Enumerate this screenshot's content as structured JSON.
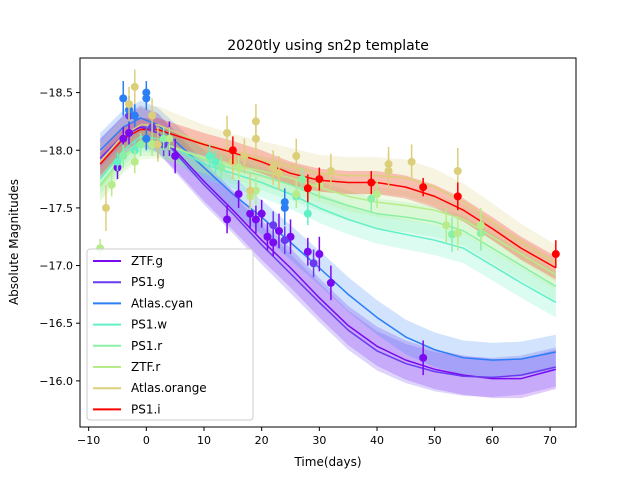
{
  "chart_data": {
    "type": "line",
    "title": "2020tly using sn2p template",
    "xlabel": "Time(days)",
    "ylabel": "Absolute Magnitudes",
    "xlim": [
      -11.5,
      74.5
    ],
    "ylim": [
      -18.8,
      -15.6
    ],
    "y_inverted": true,
    "grid": false,
    "legend_position": "lower-left",
    "xticks": [
      -10,
      0,
      10,
      20,
      30,
      40,
      50,
      60,
      70
    ],
    "xtick_labels": [
      "−10",
      "0",
      "10",
      "20",
      "30",
      "40",
      "50",
      "60",
      "70"
    ],
    "yticks": [
      -18.5,
      -18.0,
      -17.5,
      -17.0,
      -16.5,
      -16.0
    ],
    "ytick_labels": [
      "−18.5",
      "−18.0",
      "−17.5",
      "−17.0",
      "−16.5",
      "−16.0"
    ],
    "series": [
      {
        "name": "ZTF.g",
        "color": "#7a0af0",
        "band": 0.17,
        "curve": [
          [
            -8,
            -17.93
          ],
          [
            -4,
            -18.13
          ],
          [
            -1,
            -18.2
          ],
          [
            2,
            -18.15
          ],
          [
            5,
            -18.0
          ],
          [
            10,
            -17.73
          ],
          [
            15,
            -17.48
          ],
          [
            20,
            -17.22
          ],
          [
            25,
            -16.98
          ],
          [
            30,
            -16.72
          ],
          [
            35,
            -16.48
          ],
          [
            40,
            -16.3
          ],
          [
            45,
            -16.18
          ],
          [
            50,
            -16.1
          ],
          [
            55,
            -16.05
          ],
          [
            60,
            -16.02
          ],
          [
            65,
            -16.02
          ],
          [
            71,
            -16.1
          ]
        ],
        "points": [
          [
            -5,
            -17.85,
            0.1
          ],
          [
            -4,
            -18.1,
            0.1
          ],
          [
            -3,
            -18.15,
            0.1
          ],
          [
            2,
            -18.05,
            0.12
          ],
          [
            4,
            -18.1,
            0.15
          ],
          [
            5,
            -17.95,
            0.15
          ],
          [
            14,
            -17.4,
            0.12
          ],
          [
            16,
            -17.62,
            0.12
          ],
          [
            18,
            -17.45,
            0.12
          ],
          [
            19,
            -17.4,
            0.12
          ],
          [
            20,
            -17.45,
            0.12
          ],
          [
            21,
            -17.25,
            0.12
          ],
          [
            22,
            -17.2,
            0.12
          ],
          [
            23,
            -17.3,
            0.15
          ],
          [
            25,
            -17.25,
            0.15
          ],
          [
            28,
            -17.12,
            0.12
          ],
          [
            30,
            -17.1,
            0.15
          ],
          [
            32,
            -16.85,
            0.15
          ],
          [
            48,
            -16.2,
            0.15
          ]
        ]
      },
      {
        "name": "PS1.g",
        "color": "#6a3af0",
        "band": 0.17,
        "curve": [
          [
            -8,
            -17.93
          ],
          [
            -4,
            -18.13
          ],
          [
            -1,
            -18.22
          ],
          [
            2,
            -18.15
          ],
          [
            5,
            -17.98
          ],
          [
            10,
            -17.7
          ],
          [
            15,
            -17.45
          ],
          [
            20,
            -17.18
          ],
          [
            25,
            -16.93
          ],
          [
            30,
            -16.68
          ],
          [
            35,
            -16.44
          ],
          [
            40,
            -16.26
          ],
          [
            45,
            -16.15
          ],
          [
            50,
            -16.08
          ],
          [
            55,
            -16.04
          ],
          [
            60,
            -16.03
          ],
          [
            65,
            -16.05
          ],
          [
            71,
            -16.12
          ]
        ],
        "points": [
          [
            -3,
            -18.3,
            0.08
          ],
          [
            -2,
            -18.3,
            0.08
          ],
          [
            1,
            -18.2,
            0.1
          ],
          [
            3,
            -18.05,
            0.1
          ],
          [
            22,
            -17.35,
            0.12
          ],
          [
            24,
            -17.22,
            0.12
          ],
          [
            29,
            -17.02,
            0.12
          ]
        ]
      },
      {
        "name": "Atlas.cyan",
        "color": "#2c7ef5",
        "band": 0.15,
        "curve": [
          [
            -8,
            -18.0
          ],
          [
            -4,
            -18.2
          ],
          [
            -1,
            -18.28
          ],
          [
            2,
            -18.22
          ],
          [
            5,
            -18.08
          ],
          [
            10,
            -17.85
          ],
          [
            15,
            -17.62
          ],
          [
            20,
            -17.42
          ],
          [
            25,
            -17.2
          ],
          [
            30,
            -16.98
          ],
          [
            35,
            -16.75
          ],
          [
            40,
            -16.55
          ],
          [
            45,
            -16.38
          ],
          [
            50,
            -16.27
          ],
          [
            55,
            -16.2
          ],
          [
            60,
            -16.18
          ],
          [
            65,
            -16.19
          ],
          [
            71,
            -16.25
          ]
        ],
        "points": [
          [
            -4,
            -18.45,
            0.15
          ],
          [
            -3,
            -18.35,
            0.12
          ],
          [
            -2,
            -18.3,
            0.1
          ],
          [
            0,
            -18.5,
            0.1
          ],
          [
            0,
            -18.45,
            0.1
          ],
          [
            0,
            -18.1,
            0.1
          ],
          [
            24,
            -17.5,
            0.15
          ],
          [
            24,
            -17.55,
            0.12
          ]
        ]
      },
      {
        "name": "PS1.w",
        "color": "#60f0c6",
        "band": 0.13,
        "curve": [
          [
            -8,
            -17.75
          ],
          [
            -4,
            -18.0
          ],
          [
            -1,
            -18.12
          ],
          [
            2,
            -18.1
          ],
          [
            5,
            -18.02
          ],
          [
            10,
            -17.88
          ],
          [
            15,
            -17.8
          ],
          [
            20,
            -17.72
          ],
          [
            25,
            -17.62
          ],
          [
            30,
            -17.5
          ],
          [
            35,
            -17.4
          ],
          [
            40,
            -17.32
          ],
          [
            45,
            -17.27
          ],
          [
            50,
            -17.22
          ],
          [
            55,
            -17.15
          ],
          [
            60,
            -17.0
          ],
          [
            65,
            -16.85
          ],
          [
            71,
            -16.68
          ]
        ],
        "points": [
          [
            -5,
            -17.9,
            0.08
          ],
          [
            -2,
            -18.0,
            0.08
          ],
          [
            11,
            -17.95,
            0.1
          ],
          [
            12,
            -17.9,
            0.1
          ],
          [
            26,
            -17.6,
            0.1
          ],
          [
            28,
            -17.45,
            0.1
          ]
        ]
      },
      {
        "name": "PS1.r",
        "color": "#8af0a6",
        "band": 0.13,
        "curve": [
          [
            -8,
            -17.7
          ],
          [
            -4,
            -17.95
          ],
          [
            -1,
            -18.08
          ],
          [
            2,
            -18.08
          ],
          [
            5,
            -18.02
          ],
          [
            10,
            -17.92
          ],
          [
            15,
            -17.84
          ],
          [
            20,
            -17.78
          ],
          [
            25,
            -17.7
          ],
          [
            30,
            -17.6
          ],
          [
            35,
            -17.52
          ],
          [
            40,
            -17.45
          ],
          [
            45,
            -17.42
          ],
          [
            50,
            -17.38
          ],
          [
            55,
            -17.3
          ],
          [
            60,
            -17.15
          ],
          [
            65,
            -17.0
          ],
          [
            71,
            -16.82
          ]
        ],
        "points": [
          [
            -4,
            -17.95,
            0.1
          ],
          [
            -1,
            -18.05,
            0.1
          ],
          [
            3,
            -18.1,
            0.1
          ],
          [
            13,
            -17.85,
            0.1
          ],
          [
            27,
            -17.75,
            0.1
          ],
          [
            39,
            -17.58,
            0.12
          ],
          [
            53,
            -17.27,
            0.15
          ],
          [
            58,
            -17.28,
            0.15
          ]
        ]
      },
      {
        "name": "ZTF.r",
        "color": "#b8ec8a",
        "band": 0.13,
        "curve": [
          [
            -8,
            -17.68
          ],
          [
            -4,
            -17.93
          ],
          [
            -1,
            -18.05
          ],
          [
            2,
            -18.06
          ],
          [
            5,
            -18.02
          ],
          [
            10,
            -17.93
          ],
          [
            15,
            -17.87
          ],
          [
            20,
            -17.82
          ],
          [
            25,
            -17.76
          ],
          [
            30,
            -17.68
          ],
          [
            35,
            -17.6
          ],
          [
            40,
            -17.55
          ],
          [
            45,
            -17.52
          ],
          [
            50,
            -17.48
          ],
          [
            55,
            -17.4
          ],
          [
            60,
            -17.25
          ],
          [
            65,
            -17.1
          ],
          [
            71,
            -16.92
          ]
        ],
        "points": [
          [
            -8,
            -17.15,
            0.08
          ],
          [
            -6,
            -17.7,
            0.1
          ],
          [
            -2,
            -17.9,
            0.1
          ],
          [
            1,
            -18.05,
            0.1
          ],
          [
            4,
            -18.1,
            0.1
          ],
          [
            16,
            -17.85,
            0.1
          ],
          [
            18,
            -17.6,
            0.12
          ],
          [
            19,
            -17.65,
            0.12
          ],
          [
            26,
            -17.62,
            0.12
          ],
          [
            30,
            -17.7,
            0.12
          ],
          [
            40,
            -17.62,
            0.12
          ],
          [
            52,
            -17.35,
            0.15
          ],
          [
            54,
            -17.28,
            0.15
          ],
          [
            58,
            -17.35,
            0.15
          ]
        ]
      },
      {
        "name": "Atlas.orange",
        "color": "#dccf7a",
        "band": 0.16,
        "curve": [
          [
            -8,
            -17.9
          ],
          [
            -4,
            -18.13
          ],
          [
            -1,
            -18.22
          ],
          [
            2,
            -18.22
          ],
          [
            5,
            -18.16
          ],
          [
            10,
            -18.06
          ],
          [
            15,
            -17.98
          ],
          [
            20,
            -17.92
          ],
          [
            25,
            -17.86
          ],
          [
            30,
            -17.8
          ],
          [
            35,
            -17.78
          ],
          [
            40,
            -17.78
          ],
          [
            45,
            -17.76
          ],
          [
            50,
            -17.68
          ],
          [
            55,
            -17.55
          ],
          [
            60,
            -17.38
          ],
          [
            65,
            -17.2
          ],
          [
            71,
            -17.02
          ]
        ],
        "points": [
          [
            -7,
            -17.5,
            0.2
          ],
          [
            -3,
            -18.4,
            0.15
          ],
          [
            -2,
            -18.55,
            0.15
          ],
          [
            1,
            -18.3,
            0.15
          ],
          [
            2,
            -18.05,
            0.15
          ],
          [
            14,
            -18.15,
            0.15
          ],
          [
            15,
            -17.9,
            0.15
          ],
          [
            17,
            -17.95,
            0.15
          ],
          [
            18,
            -17.65,
            0.15
          ],
          [
            19,
            -18.25,
            0.15
          ],
          [
            19,
            -18.1,
            0.15
          ],
          [
            22,
            -17.85,
            0.15
          ],
          [
            23,
            -17.8,
            0.15
          ],
          [
            26,
            -17.95,
            0.15
          ],
          [
            32,
            -17.82,
            0.15
          ],
          [
            42,
            -17.82,
            0.15
          ],
          [
            42,
            -17.88,
            0.15
          ],
          [
            46,
            -17.9,
            0.15
          ],
          [
            54,
            -17.82,
            0.2
          ]
        ]
      },
      {
        "name": "PS1.i",
        "color": "#ff0000",
        "band": 0.1,
        "curve": [
          [
            -8,
            -17.88
          ],
          [
            -4,
            -18.1
          ],
          [
            -1,
            -18.18
          ],
          [
            2,
            -18.18
          ],
          [
            5,
            -18.13
          ],
          [
            10,
            -18.05
          ],
          [
            15,
            -17.98
          ],
          [
            20,
            -17.9
          ],
          [
            25,
            -17.8
          ],
          [
            30,
            -17.74
          ],
          [
            35,
            -17.72
          ],
          [
            40,
            -17.72
          ],
          [
            45,
            -17.68
          ],
          [
            50,
            -17.6
          ],
          [
            55,
            -17.48
          ],
          [
            60,
            -17.32
          ],
          [
            65,
            -17.15
          ],
          [
            71,
            -16.98
          ]
        ],
        "points": [
          [
            15,
            -18.0,
            0.12
          ],
          [
            28,
            -17.67,
            0.12
          ],
          [
            30,
            -17.75,
            0.1
          ],
          [
            39,
            -17.72,
            0.1
          ],
          [
            48,
            -17.68,
            0.08
          ],
          [
            54,
            -17.6,
            0.12
          ],
          [
            71,
            -17.1,
            0.12
          ]
        ]
      }
    ]
  }
}
